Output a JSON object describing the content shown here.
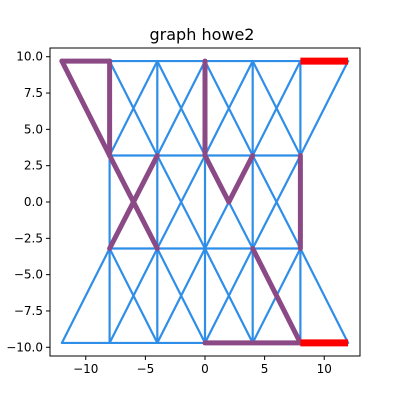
{
  "chart_data": {
    "type": "line",
    "title": "graph howe2",
    "xlabel": "",
    "ylabel": "",
    "xlim": [
      -13,
      13
    ],
    "ylim": [
      -10.6,
      10.6
    ],
    "x_ticks": [
      -10,
      -5,
      0,
      5,
      10
    ],
    "x_tick_labels": [
      "−10",
      "−5",
      "0",
      "5",
      "10"
    ],
    "y_ticks": [
      10.0,
      7.5,
      5.0,
      2.5,
      0.0,
      -2.5,
      -5.0,
      -7.5,
      -10.0
    ],
    "y_tick_labels": [
      "10.0",
      "7.5",
      "5.0",
      "2.5",
      "0.0",
      "−2.5",
      "−5.0",
      "−7.5",
      "−10.0"
    ],
    "grid": false,
    "colors": {
      "edge": "#2f8ee8",
      "path": "#8b4a86",
      "highlight": "#ff0000"
    },
    "edges": [
      [
        [
          -12,
          9.7
        ],
        [
          12,
          9.7
        ]
      ],
      [
        [
          -8,
          3.2
        ],
        [
          8,
          3.2
        ]
      ],
      [
        [
          -8,
          -3.2
        ],
        [
          8,
          -3.2
        ]
      ],
      [
        [
          -12,
          -9.7
        ],
        [
          12,
          -9.7
        ]
      ],
      [
        [
          -8,
          9.7
        ],
        [
          -8,
          -9.7
        ]
      ],
      [
        [
          -4,
          9.7
        ],
        [
          -4,
          -9.7
        ]
      ],
      [
        [
          0,
          9.7
        ],
        [
          0,
          -9.7
        ]
      ],
      [
        [
          4,
          9.7
        ],
        [
          4,
          -9.7
        ]
      ],
      [
        [
          8,
          9.7
        ],
        [
          8,
          -9.7
        ]
      ],
      [
        [
          -12,
          9.7
        ],
        [
          -8,
          3.2
        ]
      ],
      [
        [
          -8,
          9.7
        ],
        [
          -4,
          3.2
        ]
      ],
      [
        [
          -4,
          9.7
        ],
        [
          0,
          3.2
        ]
      ],
      [
        [
          0,
          9.7
        ],
        [
          4,
          3.2
        ]
      ],
      [
        [
          4,
          9.7
        ],
        [
          8,
          3.2
        ]
      ],
      [
        [
          12,
          9.7
        ],
        [
          8,
          3.2
        ]
      ],
      [
        [
          8,
          9.7
        ],
        [
          4,
          3.2
        ]
      ],
      [
        [
          4,
          9.7
        ],
        [
          0,
          3.2
        ]
      ],
      [
        [
          0,
          9.7
        ],
        [
          -4,
          3.2
        ]
      ],
      [
        [
          -4,
          9.7
        ],
        [
          -8,
          3.2
        ]
      ],
      [
        [
          -8,
          3.2
        ],
        [
          -4,
          -3.2
        ]
      ],
      [
        [
          -4,
          3.2
        ],
        [
          0,
          -3.2
        ]
      ],
      [
        [
          0,
          3.2
        ],
        [
          4,
          -3.2
        ]
      ],
      [
        [
          4,
          3.2
        ],
        [
          8,
          -3.2
        ]
      ],
      [
        [
          -4,
          3.2
        ],
        [
          -8,
          -3.2
        ]
      ],
      [
        [
          0,
          3.2
        ],
        [
          -4,
          -3.2
        ]
      ],
      [
        [
          4,
          3.2
        ],
        [
          0,
          -3.2
        ]
      ],
      [
        [
          8,
          3.2
        ],
        [
          4,
          -3.2
        ]
      ],
      [
        [
          -8,
          -3.2
        ],
        [
          -12,
          -9.7
        ]
      ],
      [
        [
          -8,
          -3.2
        ],
        [
          -4,
          -9.7
        ]
      ],
      [
        [
          -4,
          -3.2
        ],
        [
          -8,
          -9.7
        ]
      ],
      [
        [
          -4,
          -3.2
        ],
        [
          0,
          -9.7
        ]
      ],
      [
        [
          0,
          -3.2
        ],
        [
          -4,
          -9.7
        ]
      ],
      [
        [
          0,
          -3.2
        ],
        [
          4,
          -9.7
        ]
      ],
      [
        [
          4,
          -3.2
        ],
        [
          0,
          -9.7
        ]
      ],
      [
        [
          4,
          -3.2
        ],
        [
          8,
          -9.7
        ]
      ],
      [
        [
          8,
          -3.2
        ],
        [
          4,
          -9.7
        ]
      ],
      [
        [
          8,
          -3.2
        ],
        [
          12,
          -9.7
        ]
      ]
    ],
    "path_segments": [
      [
        [
          -12,
          9.7
        ],
        [
          -8,
          9.7
        ]
      ],
      [
        [
          -12,
          9.7
        ],
        [
          -8,
          3.2
        ]
      ],
      [
        [
          -8,
          9.7
        ],
        [
          -8,
          3.2
        ]
      ],
      [
        [
          -8,
          3.2
        ],
        [
          -4,
          -3.2
        ]
      ],
      [
        [
          -4,
          3.2
        ],
        [
          -8,
          -3.2
        ]
      ],
      [
        [
          0,
          9.7
        ],
        [
          0,
          3.2
        ]
      ],
      [
        [
          0,
          3.2
        ],
        [
          2,
          0
        ]
      ],
      [
        [
          2,
          0
        ],
        [
          4,
          3.2
        ]
      ],
      [
        [
          8,
          3.2
        ],
        [
          8,
          -3.2
        ]
      ],
      [
        [
          4,
          -3.2
        ],
        [
          8,
          -9.7
        ]
      ],
      [
        [
          0,
          -9.7
        ],
        [
          8,
          -9.7
        ]
      ]
    ],
    "highlight_segments": [
      [
        [
          8,
          9.7
        ],
        [
          12,
          9.7
        ]
      ],
      [
        [
          8,
          -9.7
        ],
        [
          12,
          -9.7
        ]
      ]
    ]
  }
}
